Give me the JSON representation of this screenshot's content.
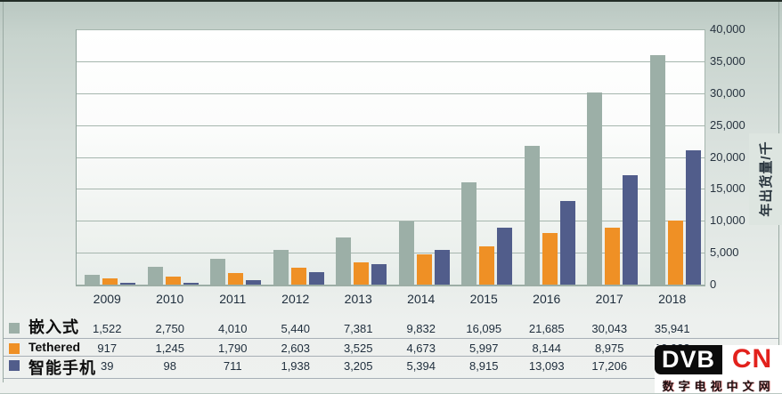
{
  "chart_data": {
    "type": "bar",
    "title": "",
    "categories": [
      "2009",
      "2010",
      "2011",
      "2012",
      "2013",
      "2014",
      "2015",
      "2016",
      "2017",
      "2018"
    ],
    "series": [
      {
        "name": "嵌入式",
        "color": "#9cafa7",
        "values": [
          1522,
          2750,
          4010,
          5440,
          7381,
          9832,
          16095,
          21685,
          30043,
          35941
        ],
        "display": [
          "1,522",
          "2,750",
          "4,010",
          "5,440",
          "7,381",
          "9,832",
          "16,095",
          "21,685",
          "30,043",
          "35,941"
        ]
      },
      {
        "name": "Tethered",
        "color": "#ef9025",
        "values": [
          917,
          1245,
          1790,
          2603,
          3525,
          4673,
          5997,
          8144,
          8975,
          10022
        ],
        "display": [
          "917",
          "1,245",
          "1,790",
          "2,603",
          "3,525",
          "4,673",
          "5,997",
          "8,144",
          "8,975",
          "10,022"
        ]
      },
      {
        "name": "智能手机",
        "color": "#515d8b",
        "values": [
          39,
          98,
          711,
          1938,
          3205,
          5394,
          8915,
          13093,
          17206,
          21000
        ],
        "display": [
          "39",
          "98",
          "711",
          "1,938",
          "3,205",
          "5,394",
          "8,915",
          "13,093",
          "17,206",
          ""
        ]
      }
    ],
    "xlabel": "",
    "ylabel": "年出货量/千",
    "ylim": [
      0,
      40000
    ],
    "ytick_step": 5000,
    "yticks": [
      "0",
      "5,000",
      "10,000",
      "15,000",
      "20,000",
      "25,000",
      "30,000",
      "35,000",
      "40,000"
    ],
    "grid": true,
    "legend_position": "table-left-bottom"
  },
  "watermark": {
    "dvb": "DVB",
    "cn": "CN",
    "subtext": "数字电视中文网"
  },
  "colors": {
    "bar_embedded": "#9cafa7",
    "bar_tethered": "#ef9025",
    "bar_smartphone": "#515d8b",
    "logo_black": "#0b0b0b",
    "logo_red": "#e2211c"
  }
}
